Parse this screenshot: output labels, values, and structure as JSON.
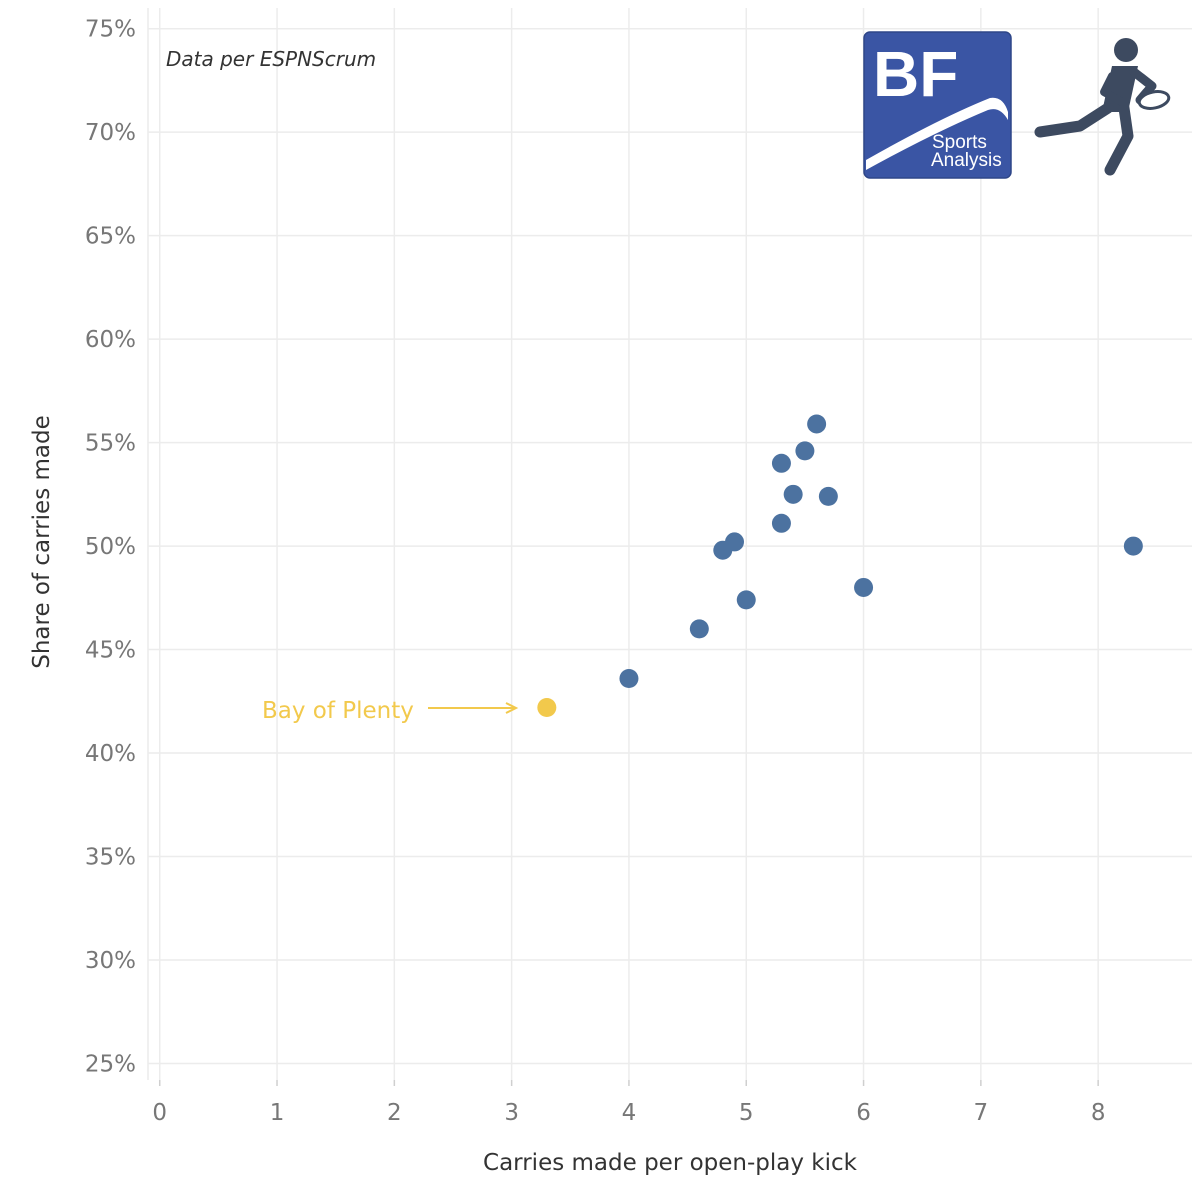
{
  "source_note": "Data per ESPNScrum",
  "logo": {
    "initials": "BF",
    "line1": "Sports",
    "line2": "Analysis",
    "color": "#3a55a4"
  },
  "icon": "rugby-player-icon",
  "colors": {
    "point": "#4c72a0",
    "highlight": "#f2c94c",
    "grid": "#ececec",
    "icon": "#3d4a60"
  },
  "chart_data": {
    "type": "scatter",
    "xlabel": "Carries made per open-play kick",
    "ylabel": "Share of carries made",
    "xlim": [
      -0.1,
      8.8
    ],
    "ylim": [
      24.2,
      76.0
    ],
    "x_ticks": [
      0,
      1,
      2,
      3,
      4,
      5,
      6,
      7,
      8
    ],
    "y_ticks": [
      25,
      30,
      35,
      40,
      45,
      50,
      55,
      60,
      65,
      70,
      75
    ],
    "y_tick_suffix": "%",
    "grid": true,
    "points": [
      {
        "x": 3.3,
        "y": 42.2,
        "highlight": true
      },
      {
        "x": 4.0,
        "y": 43.6
      },
      {
        "x": 4.6,
        "y": 46.0
      },
      {
        "x": 4.8,
        "y": 49.8
      },
      {
        "x": 4.9,
        "y": 50.2
      },
      {
        "x": 5.0,
        "y": 47.4
      },
      {
        "x": 5.3,
        "y": 51.1
      },
      {
        "x": 5.3,
        "y": 54.0
      },
      {
        "x": 5.4,
        "y": 52.5
      },
      {
        "x": 5.5,
        "y": 54.6
      },
      {
        "x": 5.6,
        "y": 55.9
      },
      {
        "x": 5.7,
        "y": 52.4
      },
      {
        "x": 6.0,
        "y": 48.0
      },
      {
        "x": 8.3,
        "y": 50.0
      }
    ],
    "annotations": [
      {
        "text": "Bay of Plenty",
        "x": 3.3,
        "y": 42.2
      }
    ]
  }
}
